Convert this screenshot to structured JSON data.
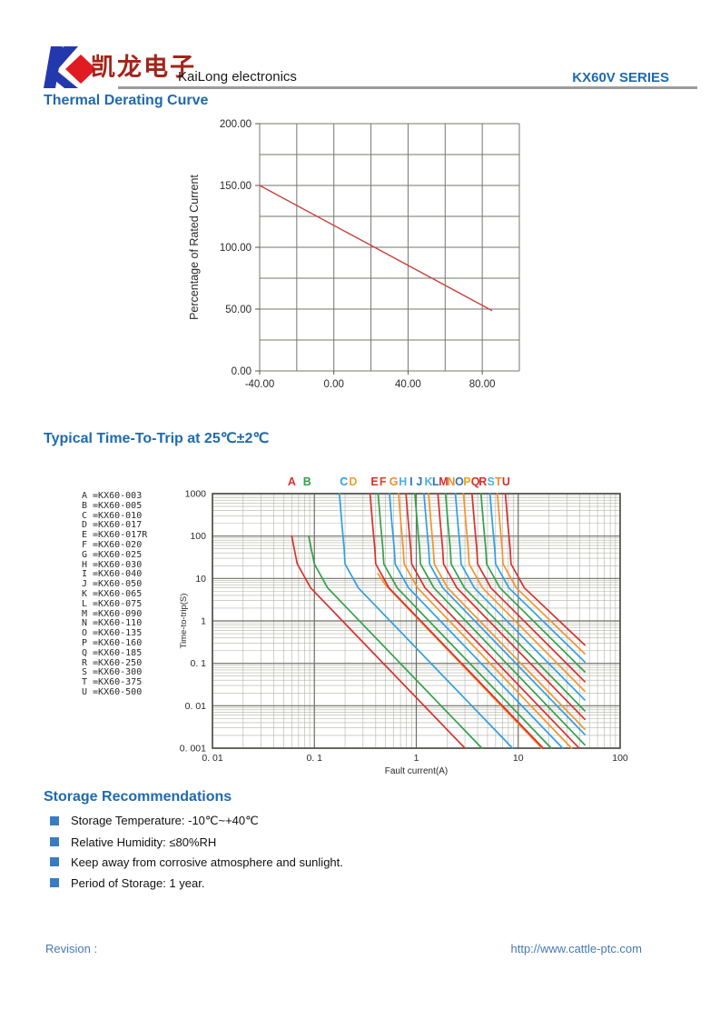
{
  "header": {
    "chinese": "凯龙电子",
    "latin": "KaiLong electronics",
    "series": "KX60V SERIES",
    "logo_colors": {
      "k_blue": "#2438ad",
      "diamond_red": "#e01b22"
    }
  },
  "sections": {
    "derating_title": "Thermal Derating Curve",
    "trip_title": "Typical Time-To-Trip at 25℃±2℃"
  },
  "storage": {
    "title": "Storage Recommendations",
    "items": [
      "Storage Temperature: -10℃~+40℃",
      "Relative Humidity: ≤80%RH",
      "Keep away from corrosive atmosphere and sunlight.",
      "Period of Storage: 1 year."
    ]
  },
  "footer": {
    "revision": "Revision :",
    "url": "http://www.cattle-ptc.com"
  },
  "chart_data": [
    {
      "type": "line",
      "title": "Thermal Derating Curve",
      "xlabel": "",
      "ylabel": "Percentage of Rated Current",
      "xlim": [
        -40,
        100
      ],
      "ylim": [
        0,
        200
      ],
      "x_grid_step": 20,
      "y_grid_step": 25,
      "grid": true,
      "x_ticks": [
        {
          "v": -40,
          "label": "-40.00"
        },
        {
          "v": 0,
          "label": "0.00"
        },
        {
          "v": 40,
          "label": "40.00"
        },
        {
          "v": 80,
          "label": "80.00"
        }
      ],
      "y_ticks": [
        {
          "v": 0,
          "label": "0.00"
        },
        {
          "v": 50,
          "label": "50.00"
        },
        {
          "v": 100,
          "label": "100.00"
        },
        {
          "v": 150,
          "label": "150.00"
        },
        {
          "v": 200,
          "label": "200.00"
        }
      ],
      "series": [
        {
          "name": "derating-line",
          "color": "#c8423a",
          "points": [
            [
              -40,
              150
            ],
            [
              85,
              49
            ]
          ]
        }
      ]
    },
    {
      "type": "line-loglog",
      "title": "Typical Time-To-Trip at 25℃±2℃",
      "xlabel": "Fault current(A)",
      "ylabel": "Time-to-trip(S)",
      "xlim": [
        0.01,
        100
      ],
      "ylim": [
        0.001,
        1000
      ],
      "grid": "log major+minor",
      "x_ticks": [
        {
          "v": 0.01,
          "label": "0. 01"
        },
        {
          "v": 0.1,
          "label": "0. 1"
        },
        {
          "v": 1,
          "label": "1"
        },
        {
          "v": 10,
          "label": "10"
        },
        {
          "v": 100,
          "label": "100"
        }
      ],
      "y_ticks": [
        {
          "v": 1000,
          "label": "1000"
        },
        {
          "v": 100,
          "label": "100"
        },
        {
          "v": 10,
          "label": "10"
        },
        {
          "v": 1,
          "label": "1"
        },
        {
          "v": 0.1,
          "label": "0. 1"
        },
        {
          "v": 0.01,
          "label": "0. 01"
        },
        {
          "v": 0.001,
          "label": "0. 001"
        }
      ],
      "series": [
        {
          "letter": "A",
          "part": "KX60-003",
          "color": "#d5312e",
          "letter_color": "#d5312e",
          "letter_x": 0.06,
          "points": [
            [
              0.06,
              100
            ],
            [
              0.064,
              45
            ],
            [
              0.068,
              22
            ],
            [
              0.092,
              6
            ],
            [
              3.0,
              0.001
            ]
          ]
        },
        {
          "letter": "B",
          "part": "KX60-005",
          "color": "#33a04b",
          "letter_color": "#33a04b",
          "letter_x": 0.085,
          "points": [
            [
              0.088,
              100
            ],
            [
              0.094,
              45
            ],
            [
              0.1,
              22
            ],
            [
              0.135,
              6
            ],
            [
              4.4,
              0.001
            ]
          ]
        },
        {
          "letter": "C",
          "part": "KX60-010",
          "color": "#2f9fe0",
          "letter_color": "#2f9fe0",
          "letter_x": 0.195,
          "points": [
            [
              0.176,
              1000
            ],
            [
              0.186,
              200
            ],
            [
              0.196,
              50
            ],
            [
              0.2,
              22
            ],
            [
              0.27,
              6
            ],
            [
              8.8,
              0.001
            ]
          ]
        },
        {
          "letter": "D",
          "part": "KX60-017",
          "color": "#f2932e",
          "letter_color": "#efa02b",
          "letter_x": 0.24,
          "points": [
            [
              0.42,
              13
            ],
            [
              0.5,
              7
            ],
            [
              0.58,
              4.8
            ],
            [
              17.0,
              0.001
            ]
          ]
        },
        {
          "letter": "E",
          "part": "KX60-017R",
          "color": "#d5312e",
          "letter_color": "#d5312e",
          "letter_x": 0.39,
          "points": [
            [
              0.352,
              1000
            ],
            [
              0.372,
              200
            ],
            [
              0.392,
              50
            ],
            [
              0.4,
              22
            ],
            [
              0.54,
              6
            ],
            [
              17.6,
              0.001
            ]
          ]
        },
        {
          "letter": "F",
          "part": "KX60-020",
          "color": "#33a04b",
          "letter_color": "#da4528",
          "letter_x": 0.47,
          "points": [
            [
              0.422,
              1000
            ],
            [
              0.446,
              200
            ],
            [
              0.47,
              50
            ],
            [
              0.48,
              22
            ],
            [
              0.65,
              6
            ],
            [
              21.1,
              0.001
            ]
          ]
        },
        {
          "letter": "G",
          "part": "KX60-025",
          "color": "#2f9fe0",
          "letter_color": "#ef8e2b",
          "letter_x": 0.6,
          "points": [
            [
              0.546,
              1000
            ],
            [
              0.576,
              200
            ],
            [
              0.608,
              50
            ],
            [
              0.62,
              22
            ],
            [
              0.84,
              6
            ],
            [
              27.3,
              0.001
            ]
          ]
        },
        {
          "letter": "H",
          "part": "KX60-030",
          "color": "#f2932e",
          "letter_color": "#4fb0e2",
          "letter_x": 0.74,
          "points": [
            [
              0.669,
              1000
            ],
            [
              0.707,
              200
            ],
            [
              0.745,
              50
            ],
            [
              0.76,
              22
            ],
            [
              1.03,
              6
            ],
            [
              33.4,
              0.001
            ]
          ]
        },
        {
          "letter": "I",
          "part": "KX60-040",
          "color": "#d5312e",
          "letter_color": "#2d74c2",
          "letter_x": 0.89,
          "points": [
            [
              0.792,
              1000
            ],
            [
              0.837,
              200
            ],
            [
              0.882,
              50
            ],
            [
              0.9,
              22
            ],
            [
              1.22,
              6
            ],
            [
              39.6,
              0.001
            ]
          ]
        },
        {
          "letter": "J",
          "part": "KX60-050",
          "color": "#33a04b",
          "letter_color": "#2d74c2",
          "letter_x": 1.07,
          "points": [
            [
              0.968,
              1000
            ],
            [
              1.023,
              200
            ],
            [
              1.078,
              50
            ],
            [
              1.1,
              22
            ],
            [
              1.49,
              6
            ],
            [
              45,
              0.0012
            ]
          ]
        },
        {
          "letter": "K",
          "part": "KX60-065",
          "color": "#2f9fe0",
          "letter_color": "#4fb0e2",
          "letter_x": 1.32,
          "points": [
            [
              1.188,
              1000
            ],
            [
              1.256,
              200
            ],
            [
              1.323,
              50
            ],
            [
              1.35,
              22
            ],
            [
              1.82,
              6
            ],
            [
              45,
              0.0021
            ]
          ]
        },
        {
          "letter": "L",
          "part": "KX60-075",
          "color": "#f2932e",
          "letter_color": "#2d74c2",
          "letter_x": 1.55,
          "points": [
            [
              1.32,
              1000
            ],
            [
              1.395,
              200
            ],
            [
              1.47,
              50
            ],
            [
              1.5,
              22
            ],
            [
              2.03,
              6
            ],
            [
              45,
              0.0028
            ]
          ]
        },
        {
          "letter": "M",
          "part": "KX60-090",
          "color": "#d5312e",
          "letter_color": "#d5312e",
          "letter_x": 1.85,
          "points": [
            [
              1.628,
              1000
            ],
            [
              1.721,
              200
            ],
            [
              1.813,
              50
            ],
            [
              1.85,
              22
            ],
            [
              2.5,
              6
            ],
            [
              45,
              0.0048
            ]
          ]
        },
        {
          "letter": "N",
          "part": "KX60-110",
          "color": "#33a04b",
          "letter_color": "#ef8e2b",
          "letter_x": 2.2,
          "points": [
            [
              1.936,
              1000
            ],
            [
              2.046,
              200
            ],
            [
              2.156,
              50
            ],
            [
              2.2,
              22
            ],
            [
              2.97,
              6
            ],
            [
              45,
              0.0076
            ]
          ]
        },
        {
          "letter": "O",
          "part": "KX60-135",
          "color": "#2f9fe0",
          "letter_color": "#2d74c2",
          "letter_x": 2.65,
          "points": [
            [
              2.42,
              1000
            ],
            [
              2.558,
              200
            ],
            [
              2.695,
              50
            ],
            [
              2.75,
              22
            ],
            [
              3.71,
              6
            ],
            [
              45,
              0.0137
            ]
          ]
        },
        {
          "letter": "P",
          "part": "KX60-160",
          "color": "#f2932e",
          "letter_color": "#efa51c",
          "letter_x": 3.15,
          "points": [
            [
              2.904,
              1000
            ],
            [
              3.069,
              200
            ],
            [
              3.234,
              50
            ],
            [
              3.3,
              22
            ],
            [
              4.46,
              6
            ],
            [
              45,
              0.022
            ]
          ]
        },
        {
          "letter": "Q",
          "part": "KX60-185",
          "color": "#d5312e",
          "letter_color": "#d5312e",
          "letter_x": 3.8,
          "points": [
            [
              3.52,
              1000
            ],
            [
              3.72,
              200
            ],
            [
              3.92,
              50
            ],
            [
              4.0,
              22
            ],
            [
              5.4,
              6
            ],
            [
              45,
              0.037
            ]
          ]
        },
        {
          "letter": "R",
          "part": "KX60-250",
          "color": "#33a04b",
          "letter_color": "#d5312e",
          "letter_x": 4.5,
          "points": [
            [
              4.312,
              1000
            ],
            [
              4.557,
              200
            ],
            [
              4.802,
              50
            ],
            [
              4.9,
              22
            ],
            [
              6.62,
              6
            ],
            [
              45,
              0.063
            ]
          ]
        },
        {
          "letter": "S",
          "part": "KX60-300",
          "color": "#2f9fe0",
          "letter_color": "#4fb0e2",
          "letter_x": 5.4,
          "points": [
            [
              5.28,
              1000
            ],
            [
              5.58,
              200
            ],
            [
              5.88,
              50
            ],
            [
              6.0,
              22
            ],
            [
              8.1,
              6
            ],
            [
              45,
              0.108
            ]
          ]
        },
        {
          "letter": "T",
          "part": "KX60-375",
          "color": "#f2932e",
          "letter_color": "#ef8e2b",
          "letter_x": 6.4,
          "points": [
            [
              6.248,
              1000
            ],
            [
              6.603,
              200
            ],
            [
              6.958,
              50
            ],
            [
              7.1,
              22
            ],
            [
              9.59,
              6
            ],
            [
              45,
              0.168
            ]
          ]
        },
        {
          "letter": "U",
          "part": "KX60-500",
          "color": "#d5312e",
          "letter_color": "#d5312e",
          "letter_x": 7.6,
          "points": [
            [
              7.48,
              1000
            ],
            [
              7.905,
              200
            ],
            [
              8.33,
              50
            ],
            [
              8.5,
              22
            ],
            [
              11.5,
              6
            ],
            [
              45,
              0.27
            ]
          ]
        }
      ]
    }
  ]
}
